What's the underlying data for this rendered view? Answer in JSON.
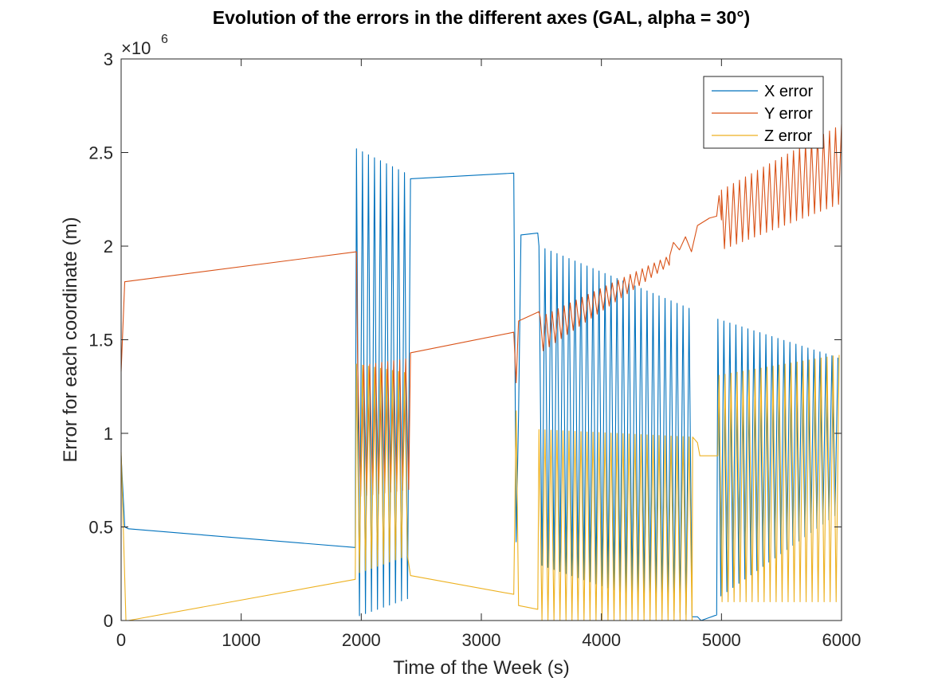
{
  "chart_data": {
    "type": "line",
    "title": "Evolution of the errors in the different axes (GAL, alpha = 30°)",
    "xlabel": "Time of the Week (s)",
    "ylabel": "Error for each coordinate (m)",
    "y_exponent_base": "×10",
    "y_exponent_power": "6",
    "xlim": [
      0,
      6000
    ],
    "ylim": [
      0,
      3
    ],
    "x_ticks": [
      0,
      1000,
      2000,
      3000,
      4000,
      5000,
      6000
    ],
    "y_ticks": [
      0,
      0.5,
      1,
      1.5,
      2,
      2.5,
      3
    ],
    "x_tick_labels": [
      "0",
      "1000",
      "2000",
      "3000",
      "4000",
      "5000",
      "6000"
    ],
    "y_tick_labels": [
      "0",
      "0.5",
      "1",
      "1.5",
      "2",
      "2.5",
      "3"
    ],
    "grid": false,
    "legend_position": "top-right",
    "series": [
      {
        "name": "X error",
        "color": "#0072BD",
        "segments": [
          {
            "type": "line",
            "x": [
              0,
              30,
              60,
              1950
            ],
            "y": [
              0.88,
              0.5,
              0.49,
              0.39
            ]
          },
          {
            "type": "osc",
            "x_start": 1960,
            "x_end": 2400,
            "period": 50,
            "hi_start": 2.52,
            "hi_end": 2.38,
            "lo_start": 0.02,
            "lo_end": 0.12
          },
          {
            "type": "line",
            "x": [
              2410,
              3270
            ],
            "y": [
              2.36,
              2.39
            ]
          },
          {
            "type": "line",
            "x": [
              3270,
              3290,
              3310,
              3330,
              3470
            ],
            "y": [
              2.39,
              0.42,
              1.1,
              2.06,
              2.07
            ]
          },
          {
            "type": "osc",
            "x_start": 3480,
            "x_end": 4760,
            "period": 50,
            "hi_start": 2.0,
            "hi_end": 1.66,
            "lo_start": 0.3,
            "lo_end": 0.02
          },
          {
            "type": "line",
            "x": [
              4760,
              4800,
              4830,
              4960
            ],
            "y": [
              0.02,
              0.02,
              0.0,
              0.03
            ]
          },
          {
            "type": "osc",
            "x_start": 4970,
            "x_end": 5990,
            "period": 50,
            "hi_start": 1.61,
            "hi_end": 1.4,
            "lo_start": 0.12,
            "lo_end": 0.58
          }
        ]
      },
      {
        "name": "Y error",
        "color": "#D95319",
        "segments": [
          {
            "type": "line",
            "x": [
              0,
              30,
              1960
            ],
            "y": [
              1.33,
              1.81,
              1.97
            ]
          },
          {
            "type": "osc",
            "x_start": 1970,
            "x_end": 2400,
            "period": 50,
            "hi_start": 1.36,
            "hi_end": 1.4,
            "lo_start": 0.66,
            "lo_end": 0.7
          },
          {
            "type": "line",
            "x": [
              2410,
              3270,
              3290,
              3310,
              3480
            ],
            "y": [
              1.43,
              1.54,
              1.27,
              1.6,
              1.65
            ]
          },
          {
            "type": "osc",
            "x_start": 3490,
            "x_end": 4570,
            "period": 50,
            "hi_start": 1.62,
            "hi_end": 1.95,
            "lo_start": 1.43,
            "lo_end": 1.9
          },
          {
            "type": "line",
            "x": [
              4570,
              4600,
              4650,
              4700,
              4750,
              4800,
              4900,
              4960,
              4980,
              5000
            ],
            "y": [
              1.95,
              2.02,
              1.98,
              2.05,
              1.97,
              2.11,
              2.15,
              2.16,
              2.27,
              2.14
            ]
          },
          {
            "type": "osc",
            "x_start": 5000,
            "x_end": 6000,
            "period": 50,
            "hi_start": 2.3,
            "hi_end": 2.65,
            "lo_start": 1.98,
            "lo_end": 2.23
          }
        ]
      },
      {
        "name": "Z error",
        "color": "#EDB120",
        "segments": [
          {
            "type": "line",
            "x": [
              0,
              40,
              60,
              1950
            ],
            "y": [
              0.9,
              0.0,
              0.0,
              0.22
            ]
          },
          {
            "type": "osc",
            "x_start": 1960,
            "x_end": 2400,
            "period": 50,
            "hi_start": 1.37,
            "hi_end": 1.32,
            "lo_start": 0.25,
            "lo_end": 0.35
          },
          {
            "type": "line",
            "x": [
              2410,
              3270,
              3290,
              3310,
              3470
            ],
            "y": [
              0.24,
              0.14,
              1.12,
              0.08,
              0.06
            ]
          },
          {
            "type": "osc",
            "x_start": 3480,
            "x_end": 4760,
            "period": 50,
            "hi_start": 1.02,
            "hi_end": 0.98,
            "lo_start": 0.0,
            "lo_end": 0.0
          },
          {
            "type": "line",
            "x": [
              4760,
              4800,
              4820,
              4970
            ],
            "y": [
              0.98,
              0.95,
              0.88,
              0.88
            ]
          },
          {
            "type": "osc",
            "x_start": 4980,
            "x_end": 5990,
            "period": 50,
            "hi_start": 1.31,
            "hi_end": 1.42,
            "lo_start": 0.1,
            "lo_end": 0.1
          }
        ]
      }
    ]
  }
}
